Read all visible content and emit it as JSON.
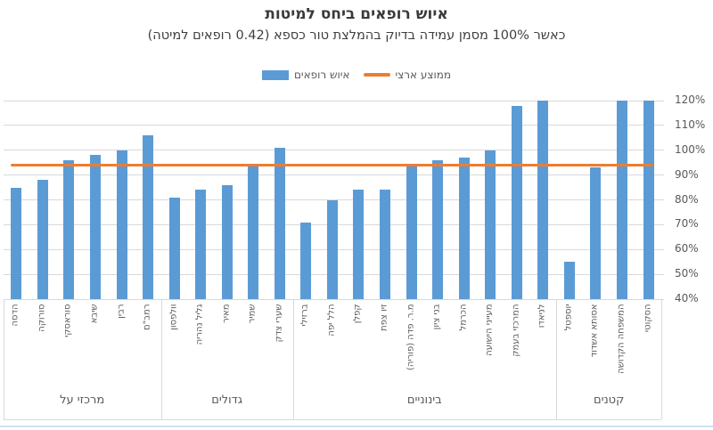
{
  "title": "איוש רופאים ביחס למיטות",
  "subtitle": "כאשר 100% מסמן עמידה בדיוק בהמלצת טור כספא (0.42 רופאים למיטה)",
  "legend": {
    "series_label": "איוש רופאים",
    "average_label": "ממוצע ארצי"
  },
  "colors": {
    "bar": "#5B9BD5",
    "average_line": "#ED7D31",
    "grid": "#D9D9D9",
    "axis_text": "#595959"
  },
  "chart_data": {
    "type": "bar",
    "title": "איוש רופאים ביחס למיטות",
    "subtitle": "כאשר 100% מסמן עמידה בדיוק בהמלצת טור כספא (0.42 רופאים למיטה)",
    "ylim": [
      40,
      120
    ],
    "grid": true,
    "legend_position": "top",
    "yticks": [
      {
        "value": 40,
        "label": "40%"
      },
      {
        "value": 50,
        "label": "50%"
      },
      {
        "value": 60,
        "label": "60%"
      },
      {
        "value": 70,
        "label": "70%"
      },
      {
        "value": 80,
        "label": "80%"
      },
      {
        "value": 90,
        "label": "90%"
      },
      {
        "value": 100,
        "label": "100%"
      },
      {
        "value": 110,
        "label": "110%"
      },
      {
        "value": 120,
        "label": "120%"
      }
    ],
    "series_name": "איוש רופאים",
    "average_line": {
      "name": "ממוצע ארצי",
      "value": 94
    },
    "unit": "percent",
    "groups": [
      {
        "label": "מרכזי על",
        "categories": [
          "הדסה",
          "סורוקה",
          "סוראסקי",
          "שיבא",
          "רבין",
          "רמב\"ם"
        ],
        "values": [
          85,
          88,
          96,
          98,
          100,
          106
        ]
      },
      {
        "label": "גדולים",
        "categories": [
          "וולפסון",
          "גליל נהריה",
          "מאיר",
          "שמיר",
          "שערי צדק"
        ],
        "values": [
          81,
          84,
          86,
          94,
          101
        ]
      },
      {
        "label": "בינוניים",
        "categories": [
          "ברזילי",
          "הלל יפה",
          "קפלן",
          "זיו צפת",
          "מ.ר. פדה (פוריה)",
          "בני ציון",
          "הכרמל",
          "מעייני הישועה",
          "המרכזי בעמק",
          "לניאדו"
        ],
        "values": [
          71,
          80,
          84,
          84,
          94,
          96,
          97,
          100,
          118,
          120
        ]
      },
      {
        "label": "קטנים",
        "categories": [
          "יוספטל",
          "אסותא אשדוד",
          "המשפחה הקדושה",
          "הסקוטי"
        ],
        "values": [
          55,
          93,
          120,
          120
        ]
      }
    ]
  }
}
